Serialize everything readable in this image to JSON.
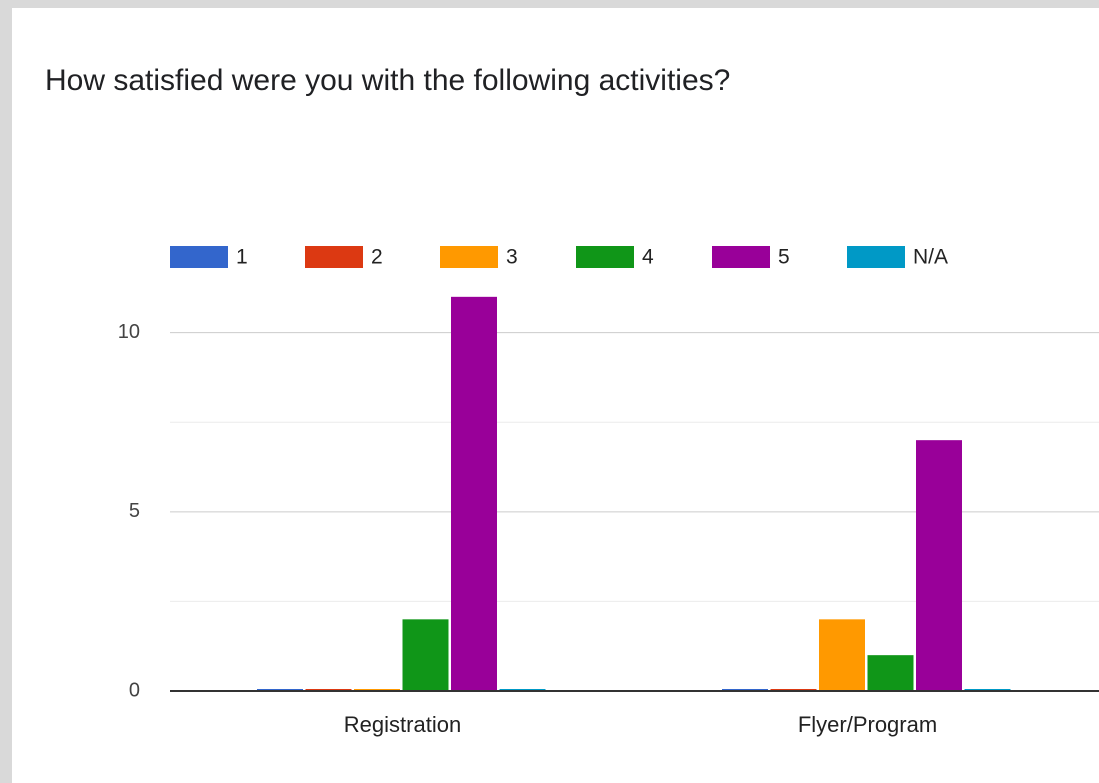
{
  "chart_data": {
    "type": "bar",
    "title": "How satisfied were you with the following activities?",
    "categories": [
      "Registration",
      "Flyer/Program"
    ],
    "series": [
      {
        "name": "1",
        "color": "#3366cc",
        "values": [
          0,
          0
        ]
      },
      {
        "name": "2",
        "color": "#dc3912",
        "values": [
          0,
          0
        ]
      },
      {
        "name": "3",
        "color": "#ff9900",
        "values": [
          0,
          2
        ]
      },
      {
        "name": "4",
        "color": "#109618",
        "values": [
          2,
          1
        ]
      },
      {
        "name": "5",
        "color": "#990099",
        "values": [
          11,
          7
        ]
      },
      {
        "name": "N/A",
        "color": "#0099c6",
        "values": [
          0,
          0
        ]
      }
    ],
    "ylim": [
      0,
      12
    ],
    "yticks": [
      0,
      5,
      10
    ],
    "minor_yticks": [
      2.5,
      7.5
    ],
    "grid": true,
    "legend": "top"
  }
}
